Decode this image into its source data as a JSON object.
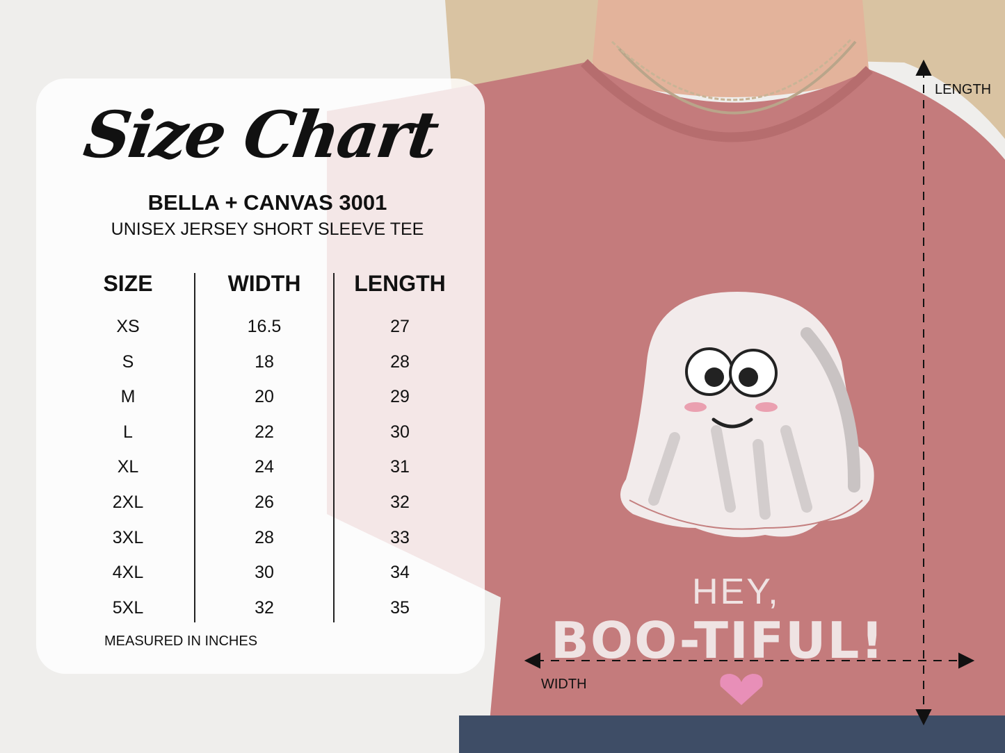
{
  "title": "Size Chart",
  "brand": "BELLA + CANVAS 3001",
  "subtitle": "UNISEX JERSEY SHORT SLEEVE TEE",
  "table": {
    "headers": [
      "SIZE",
      "WIDTH",
      "LENGTH"
    ],
    "rows": [
      [
        "XS",
        "16.5",
        "27"
      ],
      [
        "S",
        "18",
        "28"
      ],
      [
        "M",
        "20",
        "29"
      ],
      [
        "L",
        "22",
        "30"
      ],
      [
        "XL",
        "24",
        "31"
      ],
      [
        "2XL",
        "26",
        "32"
      ],
      [
        "3XL",
        "28",
        "33"
      ],
      [
        "4XL",
        "30",
        "34"
      ],
      [
        "5XL",
        "32",
        "35"
      ]
    ]
  },
  "note": "MEASURED IN INCHES",
  "measure_labels": {
    "length": "LENGTH",
    "width": "WIDTH"
  },
  "shirt_print": {
    "line1": "HEY,",
    "line2": "BOO-TIFUL!"
  },
  "colors": {
    "shirt": "#c47b7c",
    "panel": "#ffffff",
    "text": "#111111"
  }
}
